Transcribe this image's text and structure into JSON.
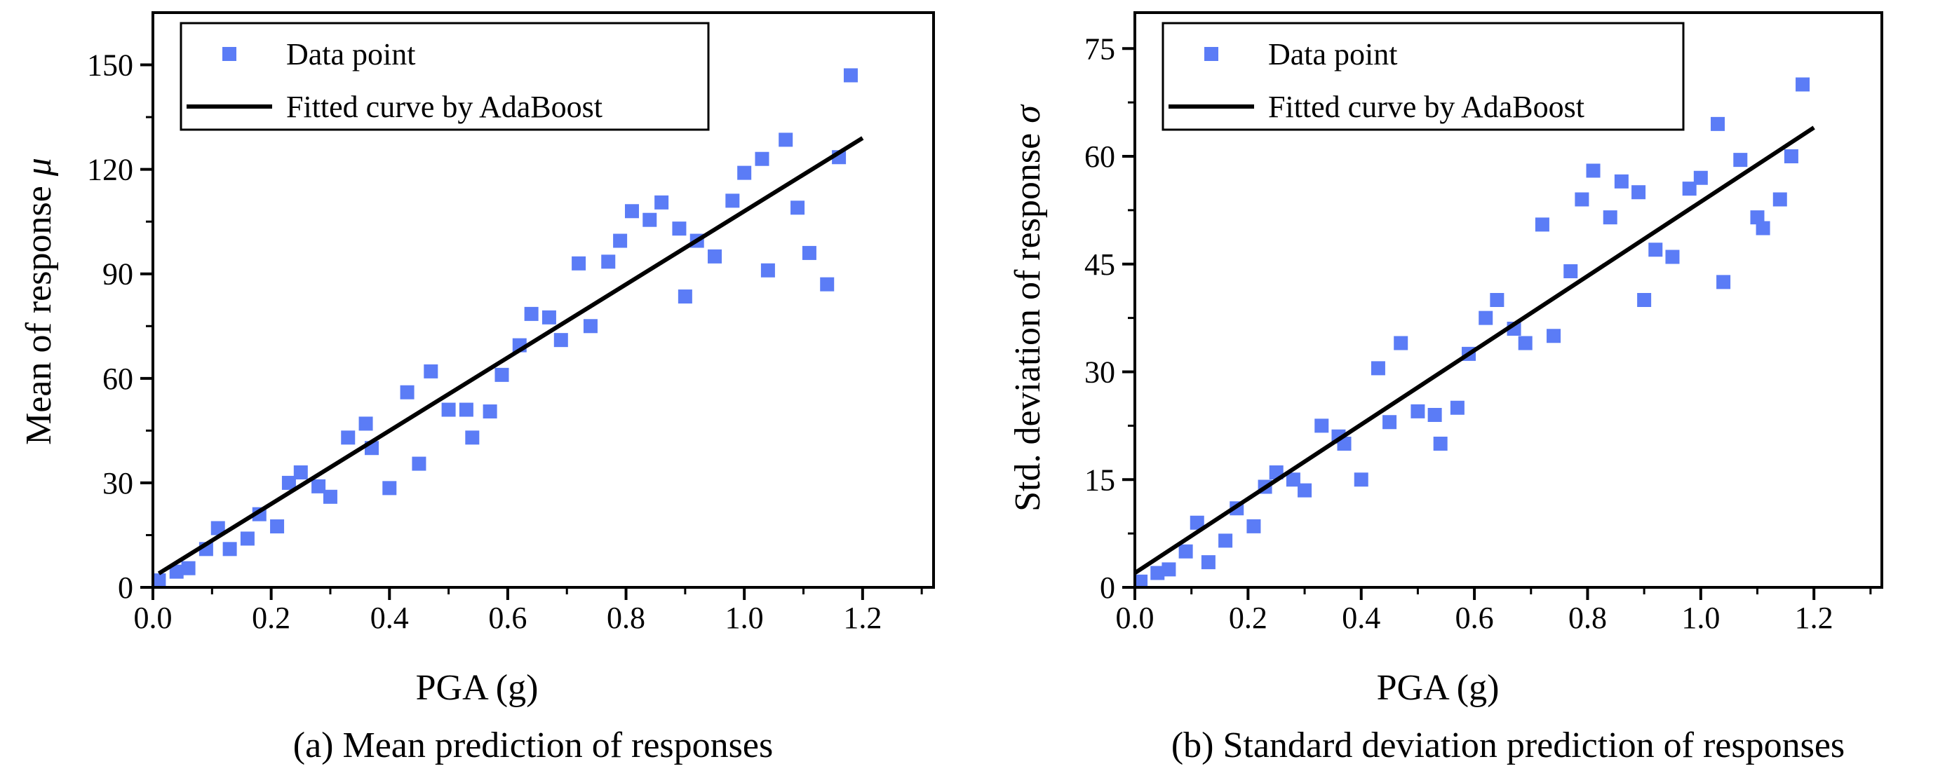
{
  "chart_data": [
    {
      "type": "scatter",
      "caption": "(a) Mean prediction of responses",
      "xlabel": "PGA (g)",
      "ylabel": "Mean of response",
      "ylabel_symbol": "μ",
      "xlim": [
        0,
        1.32
      ],
      "ylim": [
        0,
        165
      ],
      "xticks": [
        "0.0",
        "0.2",
        "0.4",
        "0.6",
        "0.8",
        "1.0",
        "1.2"
      ],
      "yticks": [
        "0",
        "30",
        "60",
        "90",
        "120",
        "150"
      ],
      "legend": {
        "position": "top-left",
        "points_label": "Data point",
        "line_label": "Fitted curve by AdaBoost"
      },
      "colors": {
        "points": "#5b7cf6",
        "line": "#000000"
      },
      "series": [
        {
          "name": "Data point",
          "points": [
            [
              0.01,
              2
            ],
            [
              0.04,
              4.5
            ],
            [
              0.06,
              5.5
            ],
            [
              0.09,
              11
            ],
            [
              0.11,
              17
            ],
            [
              0.13,
              11
            ],
            [
              0.16,
              14
            ],
            [
              0.18,
              21
            ],
            [
              0.21,
              17.5
            ],
            [
              0.23,
              30
            ],
            [
              0.25,
              33
            ],
            [
              0.28,
              29
            ],
            [
              0.3,
              26
            ],
            [
              0.33,
              43
            ],
            [
              0.36,
              47
            ],
            [
              0.37,
              40
            ],
            [
              0.4,
              28.5
            ],
            [
              0.43,
              56
            ],
            [
              0.45,
              35.5
            ],
            [
              0.47,
              62
            ],
            [
              0.5,
              51
            ],
            [
              0.53,
              51
            ],
            [
              0.54,
              43
            ],
            [
              0.57,
              50.5
            ],
            [
              0.59,
              61
            ],
            [
              0.62,
              69.5
            ],
            [
              0.64,
              78.5
            ],
            [
              0.67,
              77.5
            ],
            [
              0.69,
              71
            ],
            [
              0.72,
              93
            ],
            [
              0.74,
              75
            ],
            [
              0.77,
              93.5
            ],
            [
              0.79,
              99.5
            ],
            [
              0.81,
              108
            ],
            [
              0.84,
              105.5
            ],
            [
              0.86,
              110.5
            ],
            [
              0.89,
              103
            ],
            [
              0.9,
              83.5
            ],
            [
              0.92,
              99.5
            ],
            [
              0.95,
              95
            ],
            [
              0.98,
              111
            ],
            [
              1.0,
              119
            ],
            [
              1.03,
              123
            ],
            [
              1.04,
              91
            ],
            [
              1.07,
              128.5
            ],
            [
              1.09,
              109
            ],
            [
              1.11,
              96
            ],
            [
              1.14,
              87
            ],
            [
              1.16,
              123.5
            ],
            [
              1.18,
              147
            ]
          ]
        },
        {
          "name": "Fitted curve by AdaBoost",
          "points": [
            [
              0.01,
              4
            ],
            [
              1.2,
              129
            ]
          ]
        }
      ]
    },
    {
      "type": "scatter",
      "caption": "(b) Standard deviation prediction of responses",
      "xlabel": "PGA (g)",
      "ylabel": "Std. deviation of response",
      "ylabel_symbol": "σ",
      "xlim": [
        0,
        1.32
      ],
      "ylim": [
        0,
        80
      ],
      "xticks": [
        "0.0",
        "0.2",
        "0.4",
        "0.6",
        "0.8",
        "1.0",
        "1.2"
      ],
      "yticks": [
        "0",
        "15",
        "30",
        "45",
        "60",
        "75"
      ],
      "legend": {
        "position": "top-left",
        "points_label": "Data point",
        "line_label": "Fitted curve by AdaBoost"
      },
      "colors": {
        "points": "#5b7cf6",
        "line": "#000000"
      },
      "series": [
        {
          "name": "Data point",
          "points": [
            [
              0.01,
              0.8
            ],
            [
              0.04,
              2
            ],
            [
              0.06,
              2.5
            ],
            [
              0.09,
              5
            ],
            [
              0.11,
              9
            ],
            [
              0.13,
              3.5
            ],
            [
              0.16,
              6.5
            ],
            [
              0.18,
              11
            ],
            [
              0.21,
              8.5
            ],
            [
              0.23,
              14
            ],
            [
              0.25,
              16
            ],
            [
              0.28,
              15
            ],
            [
              0.3,
              13.5
            ],
            [
              0.33,
              22.5
            ],
            [
              0.36,
              21
            ],
            [
              0.37,
              20
            ],
            [
              0.4,
              15
            ],
            [
              0.43,
              30.5
            ],
            [
              0.45,
              23
            ],
            [
              0.47,
              34
            ],
            [
              0.5,
              24.5
            ],
            [
              0.53,
              24
            ],
            [
              0.54,
              20
            ],
            [
              0.57,
              25
            ],
            [
              0.59,
              32.5
            ],
            [
              0.62,
              37.5
            ],
            [
              0.64,
              40
            ],
            [
              0.67,
              36
            ],
            [
              0.69,
              34
            ],
            [
              0.72,
              50.5
            ],
            [
              0.74,
              35
            ],
            [
              0.77,
              44
            ],
            [
              0.79,
              54
            ],
            [
              0.81,
              58
            ],
            [
              0.84,
              51.5
            ],
            [
              0.86,
              56.5
            ],
            [
              0.89,
              55
            ],
            [
              0.9,
              40
            ],
            [
              0.92,
              47
            ],
            [
              0.95,
              46
            ],
            [
              0.98,
              55.5
            ],
            [
              1.0,
              57
            ],
            [
              1.03,
              64.5
            ],
            [
              1.04,
              42.5
            ],
            [
              1.07,
              59.5
            ],
            [
              1.1,
              51.5
            ],
            [
              1.11,
              50
            ],
            [
              1.14,
              54
            ],
            [
              1.16,
              60
            ],
            [
              1.18,
              70
            ]
          ]
        },
        {
          "name": "Fitted curve by AdaBoost",
          "points": [
            [
              0.0,
              2
            ],
            [
              1.2,
              64
            ]
          ]
        }
      ]
    }
  ]
}
